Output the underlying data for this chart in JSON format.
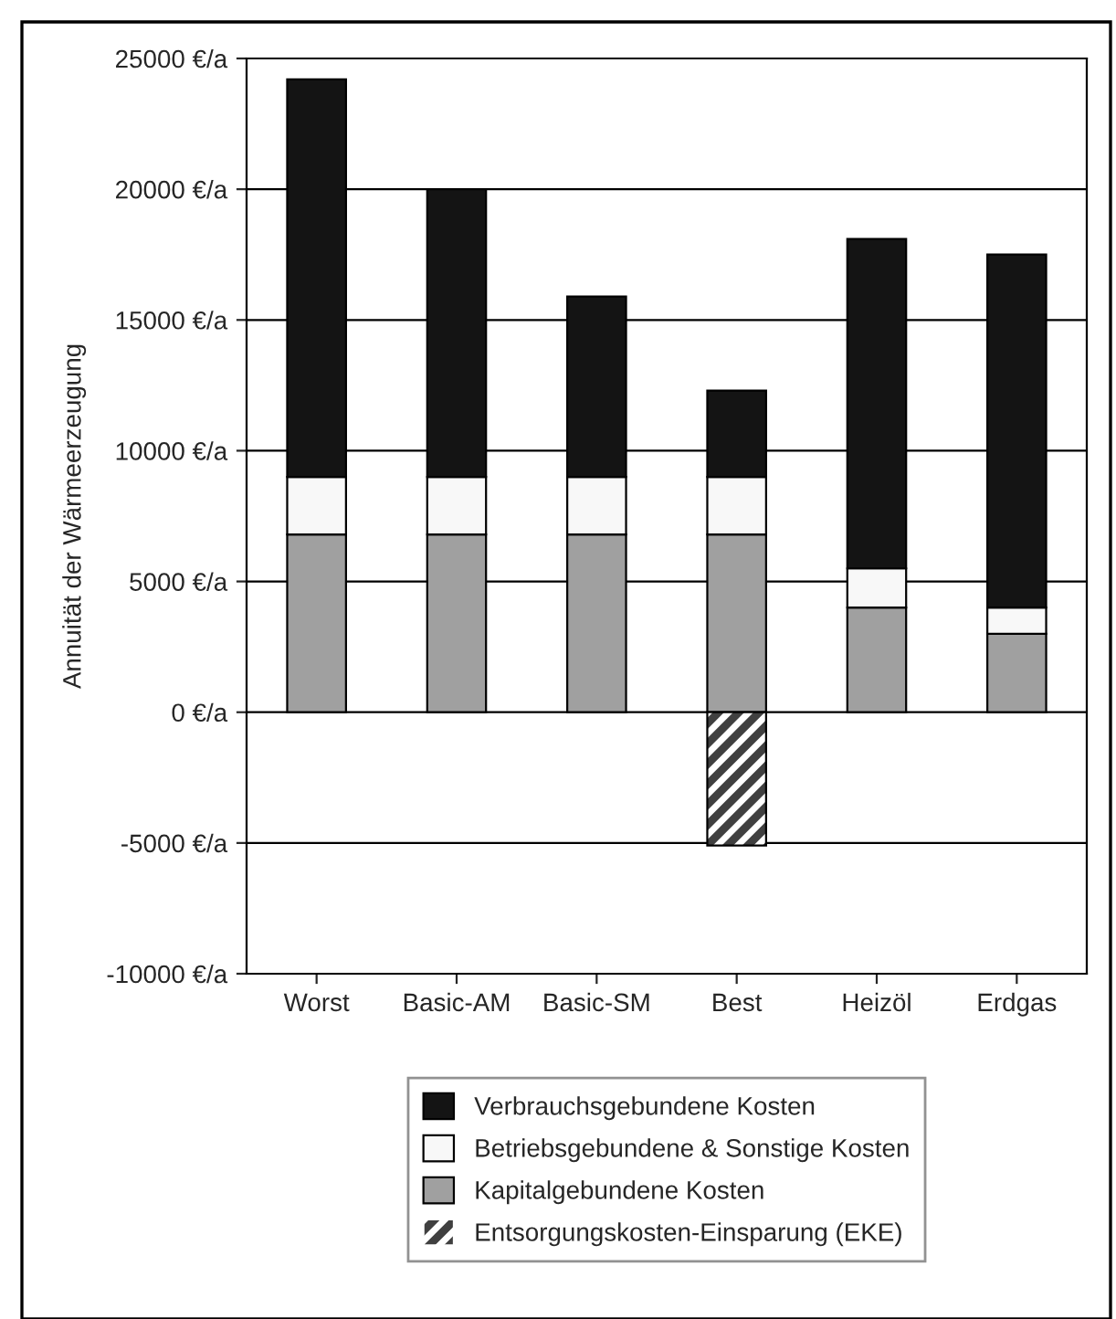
{
  "chart_data": {
    "type": "bar",
    "stacked": true,
    "ylabel": "Annuität der Wärmeerzeugung",
    "categories": [
      "Worst",
      "Basic-AM",
      "Basic-SM",
      "Best",
      "Heizöl",
      "Erdgas"
    ],
    "series": [
      {
        "name": "Kapitalgebundene Kosten",
        "color": "#a0a0a0",
        "values": [
          6800,
          6800,
          6800,
          6800,
          4000,
          3000
        ]
      },
      {
        "name": "Betriebsgebundene & Sonstige Kosten",
        "color": "#f8f8f8",
        "values": [
          2200,
          2200,
          2200,
          2200,
          1500,
          1000
        ]
      },
      {
        "name": "Verbrauchsgebundene Kosten",
        "color": "#141414",
        "values": [
          15200,
          11000,
          6900,
          3300,
          12600,
          13500
        ]
      },
      {
        "name": "Entsorgungskosten-Einsparung (EKE)",
        "color": "#404040",
        "values": [
          null,
          null,
          null,
          -5100,
          null,
          null
        ]
      }
    ],
    "ylim": [
      -10000,
      25000
    ],
    "yticks": [
      {
        "value": -10000,
        "label": "-10000 €/a"
      },
      {
        "value": -5000,
        "label": "-5000 €/a"
      },
      {
        "value": 0,
        "label": "0 €/a"
      },
      {
        "value": 5000,
        "label": "5000 €/a"
      },
      {
        "value": 10000,
        "label": "10000 €/a"
      },
      {
        "value": 15000,
        "label": "15000 €/a"
      },
      {
        "value": 20000,
        "label": "20000 €/a"
      },
      {
        "value": 25000,
        "label": "25000 €/a"
      }
    ],
    "grid": "y",
    "legend": "bottom"
  }
}
